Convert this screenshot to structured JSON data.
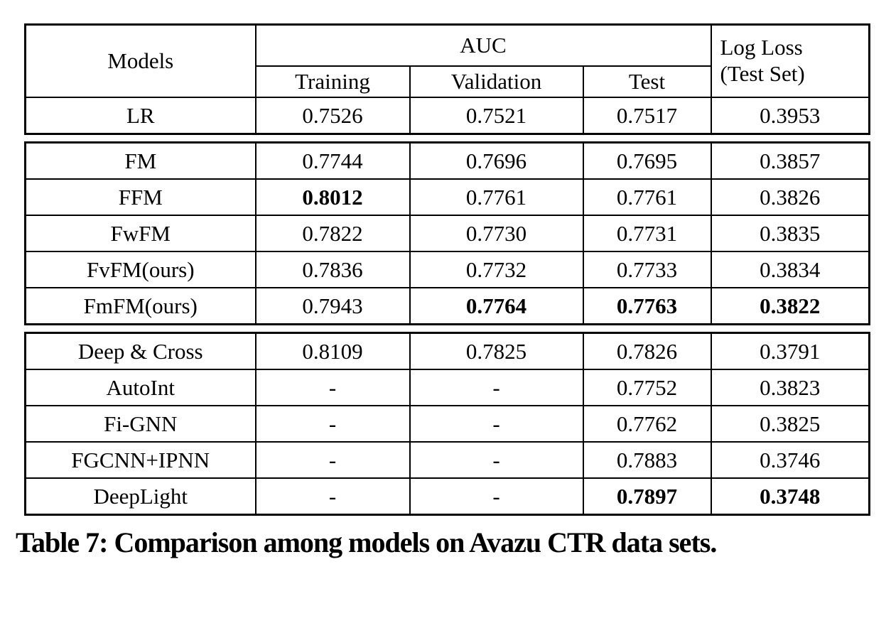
{
  "page": {
    "background_color": "#ffffff",
    "text_color": "#000000",
    "border_color": "#000000"
  },
  "table": {
    "header": {
      "models_label": "Models",
      "auc_label": "AUC",
      "sub_columns": [
        "Training",
        "Validation",
        "Test"
      ],
      "logloss_line1": "Log Loss",
      "logloss_line2": "(Test Set)"
    },
    "columns": [
      "model",
      "training",
      "validation",
      "test",
      "logloss"
    ],
    "groups": [
      {
        "name": "linear-baseline",
        "rows": [
          {
            "model": "LR",
            "values": [
              "0.7526",
              "0.7521",
              "0.7517",
              "0.3953"
            ],
            "bold": [
              false,
              false,
              false,
              false
            ]
          }
        ]
      },
      {
        "name": "factorization-machine-family",
        "rows": [
          {
            "model": "FM",
            "values": [
              "0.7744",
              "0.7696",
              "0.7695",
              "0.3857"
            ],
            "bold": [
              false,
              false,
              false,
              false
            ]
          },
          {
            "model": "FFM",
            "values": [
              "0.8012",
              "0.7761",
              "0.7761",
              "0.3826"
            ],
            "bold": [
              true,
              false,
              false,
              false
            ]
          },
          {
            "model": "FwFM",
            "values": [
              "0.7822",
              "0.7730",
              "0.7731",
              "0.3835"
            ],
            "bold": [
              false,
              false,
              false,
              false
            ]
          },
          {
            "model": "FvFM(ours)",
            "values": [
              "0.7836",
              "0.7732",
              "0.7733",
              "0.3834"
            ],
            "bold": [
              false,
              false,
              false,
              false
            ]
          },
          {
            "model": "FmFM(ours)",
            "values": [
              "0.7943",
              "0.7764",
              "0.7763",
              "0.3822"
            ],
            "bold": [
              false,
              true,
              true,
              true
            ]
          }
        ]
      },
      {
        "name": "deep-model-family",
        "rows": [
          {
            "model": "Deep & Cross",
            "values": [
              "0.8109",
              "0.7825",
              "0.7826",
              "0.3791"
            ],
            "bold": [
              false,
              false,
              false,
              false
            ]
          },
          {
            "model": "AutoInt",
            "values": [
              "-",
              "-",
              "0.7752",
              "0.3823"
            ],
            "bold": [
              false,
              false,
              false,
              false
            ]
          },
          {
            "model": "Fi-GNN",
            "values": [
              "-",
              "-",
              "0.7762",
              "0.3825"
            ],
            "bold": [
              false,
              false,
              false,
              false
            ]
          },
          {
            "model": "FGCNN+IPNN",
            "values": [
              "-",
              "-",
              "0.7883",
              "0.3746"
            ],
            "bold": [
              false,
              false,
              false,
              false
            ]
          },
          {
            "model": "DeepLight",
            "values": [
              "-",
              "-",
              "0.7897",
              "0.3748"
            ],
            "bold": [
              false,
              false,
              true,
              true
            ]
          }
        ]
      }
    ]
  },
  "caption": "Table 7: Comparison among models on Avazu CTR data sets."
}
